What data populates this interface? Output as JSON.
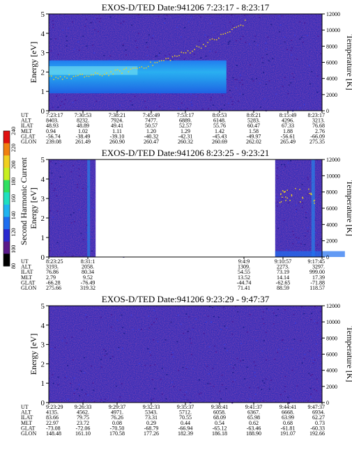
{
  "chart_data": [
    {
      "type": "heatmap",
      "title": "EXOS-D/TED   Date:941206  7:23:17 - 8:23:17",
      "ylabel": "Energy [eV]",
      "y2label": "Temperature [K]",
      "ylim": [
        0,
        5
      ],
      "y_ticks": [
        "0",
        "1",
        "2",
        "3",
        "4",
        "5"
      ],
      "y2lim": [
        0,
        12000
      ],
      "y2_ticks": [
        "0",
        "2000",
        "4000",
        "6000",
        "8000",
        "10000",
        "12000"
      ],
      "data_gaps": [],
      "band": {
        "bottom": 0.9,
        "top": 2.6,
        "end_ut_index": 5.2
      },
      "ephemeris": {
        "rows": [
          "UT",
          "ALT",
          "ILAT",
          "MLT",
          "GLAT",
          "GLON"
        ],
        "values": [
          [
            "7:23:17",
            "7:30:53",
            "7:38:21",
            "7:45:49",
            "7:53:17",
            "8:0:53",
            "8:8:21",
            "8:15:49",
            "8:23:17"
          ],
          [
            "8403.",
            "8232.",
            "7924.",
            "7477.",
            "6889.",
            "6148.",
            "5283.",
            "4296.",
            "3213."
          ],
          [
            "48.93",
            "48.89",
            "49.41",
            "50.57",
            "52.57",
            "55.76",
            "60.47",
            "67.33",
            "76.68"
          ],
          [
            "0.94",
            "1.02",
            "1.11",
            "1.20",
            "1.29",
            "1.42",
            "1.58",
            "1.88",
            "2.76"
          ],
          [
            "-56.74",
            "-38.49",
            "-39.10",
            "-40.32",
            "-42.31",
            "-45.43",
            "-49.97",
            "-56.61",
            "-66.09"
          ],
          [
            "239.08",
            "261.49",
            "260.90",
            "260.47",
            "260.32",
            "260.69",
            "262.02",
            "265.49",
            "275.35"
          ]
        ]
      }
    },
    {
      "type": "heatmap",
      "title": "EXOS-D/TED   Date:941206  8:23:25 - 9:23:21",
      "ylabel": "Energy [eV]",
      "y2label": "Temperature [K]",
      "ylim": [
        0,
        5
      ],
      "y_ticks": [
        "0",
        "1",
        "2",
        "3",
        "4",
        "5"
      ],
      "y2lim": [
        0,
        12000
      ],
      "y2_ticks": [
        "0",
        "2000",
        "4000",
        "6000",
        "8000",
        "10000",
        "12000"
      ],
      "data_gaps": [
        [
          1.2,
          5.8
        ]
      ],
      "band": null,
      "ephemeris": {
        "rows": [
          "UT",
          "ALT",
          "ILAT",
          "MLT",
          "GLAT",
          "GLON"
        ],
        "values": [
          [
            "8:23:25",
            "8:31:1",
            "",
            "",
            "",
            "9:4:9",
            "9:10:57",
            "9:17:45"
          ],
          [
            "3193.",
            "2058.",
            "",
            "",
            "",
            "1309.",
            "2273.",
            "3297."
          ],
          [
            "76.86",
            "80.34",
            "",
            "",
            "",
            "54.55",
            "73.19",
            "999.00"
          ],
          [
            "2.79",
            "9.52",
            "",
            "",
            "",
            "13.52",
            "14.14",
            "17.39"
          ],
          [
            "-66.28",
            "-76.49",
            "",
            "",
            "",
            "-44.74",
            "-62.65",
            "-71.88"
          ],
          [
            "275.66",
            "319.32",
            "",
            "",
            "",
            "71.41",
            "88.59",
            "118.57"
          ]
        ]
      }
    },
    {
      "type": "heatmap",
      "title": "EXOS-D/TED   Date:941206  9:23:29 - 9:47:37",
      "ylabel": "Energy [eV]",
      "y2label": "Temperature [K]",
      "ylim": [
        0,
        5
      ],
      "y_ticks": [
        "0",
        "1",
        "2",
        "3",
        "4",
        "5"
      ],
      "y2lim": [
        0,
        12000
      ],
      "y2_ticks": [
        "0",
        "2000",
        "4000",
        "6000",
        "8000",
        "10000",
        "12000"
      ],
      "data_gaps": [],
      "band": null,
      "ephemeris": {
        "rows": [
          "UT",
          "ALT",
          "ILAT",
          "MLT",
          "GLAT",
          "GLON"
        ],
        "values": [
          [
            "9:23:29",
            "9:26:33",
            "9:29:37",
            "9:32:33",
            "9:35:37",
            "9:38:41",
            "9:41:37",
            "9:44:41",
            "9:47:37"
          ],
          [
            "4135.",
            "4562.",
            "4971.",
            "5343.",
            "5712.",
            "6058.",
            "6367.",
            "6668.",
            "6934."
          ],
          [
            "83.66",
            "79.75",
            "76.26",
            "73.31",
            "70.55",
            "68.09",
            "65.98",
            "63.99",
            "62.27"
          ],
          [
            "22.97",
            "23.72",
            "0.08",
            "0.29",
            "0.44",
            "0.54",
            "0.62",
            "0.68",
            "0.73"
          ],
          [
            "-73.08",
            "-72.06",
            "-70.50",
            "-68.79",
            "-66.94",
            "-65.12",
            "-63.46",
            "-61.81",
            "-60.33"
          ],
          [
            "148.48",
            "161.10",
            "170.58",
            "177.26",
            "182.39",
            "186.18",
            "188.90",
            "191.07",
            "192.66"
          ]
        ]
      }
    }
  ],
  "colorbar": {
    "label": "Second Harmonic Current",
    "ticks": [
      "80",
      "100",
      "120",
      "140",
      "160",
      "180",
      "200",
      "220",
      "240"
    ],
    "colors": [
      "#000000",
      "#5a1a8a",
      "#2a2ad0",
      "#1e6ef0",
      "#20b4f0",
      "#20e0c0",
      "#30e060",
      "#c8f020",
      "#f0d020",
      "#f08010",
      "#e01010"
    ]
  }
}
